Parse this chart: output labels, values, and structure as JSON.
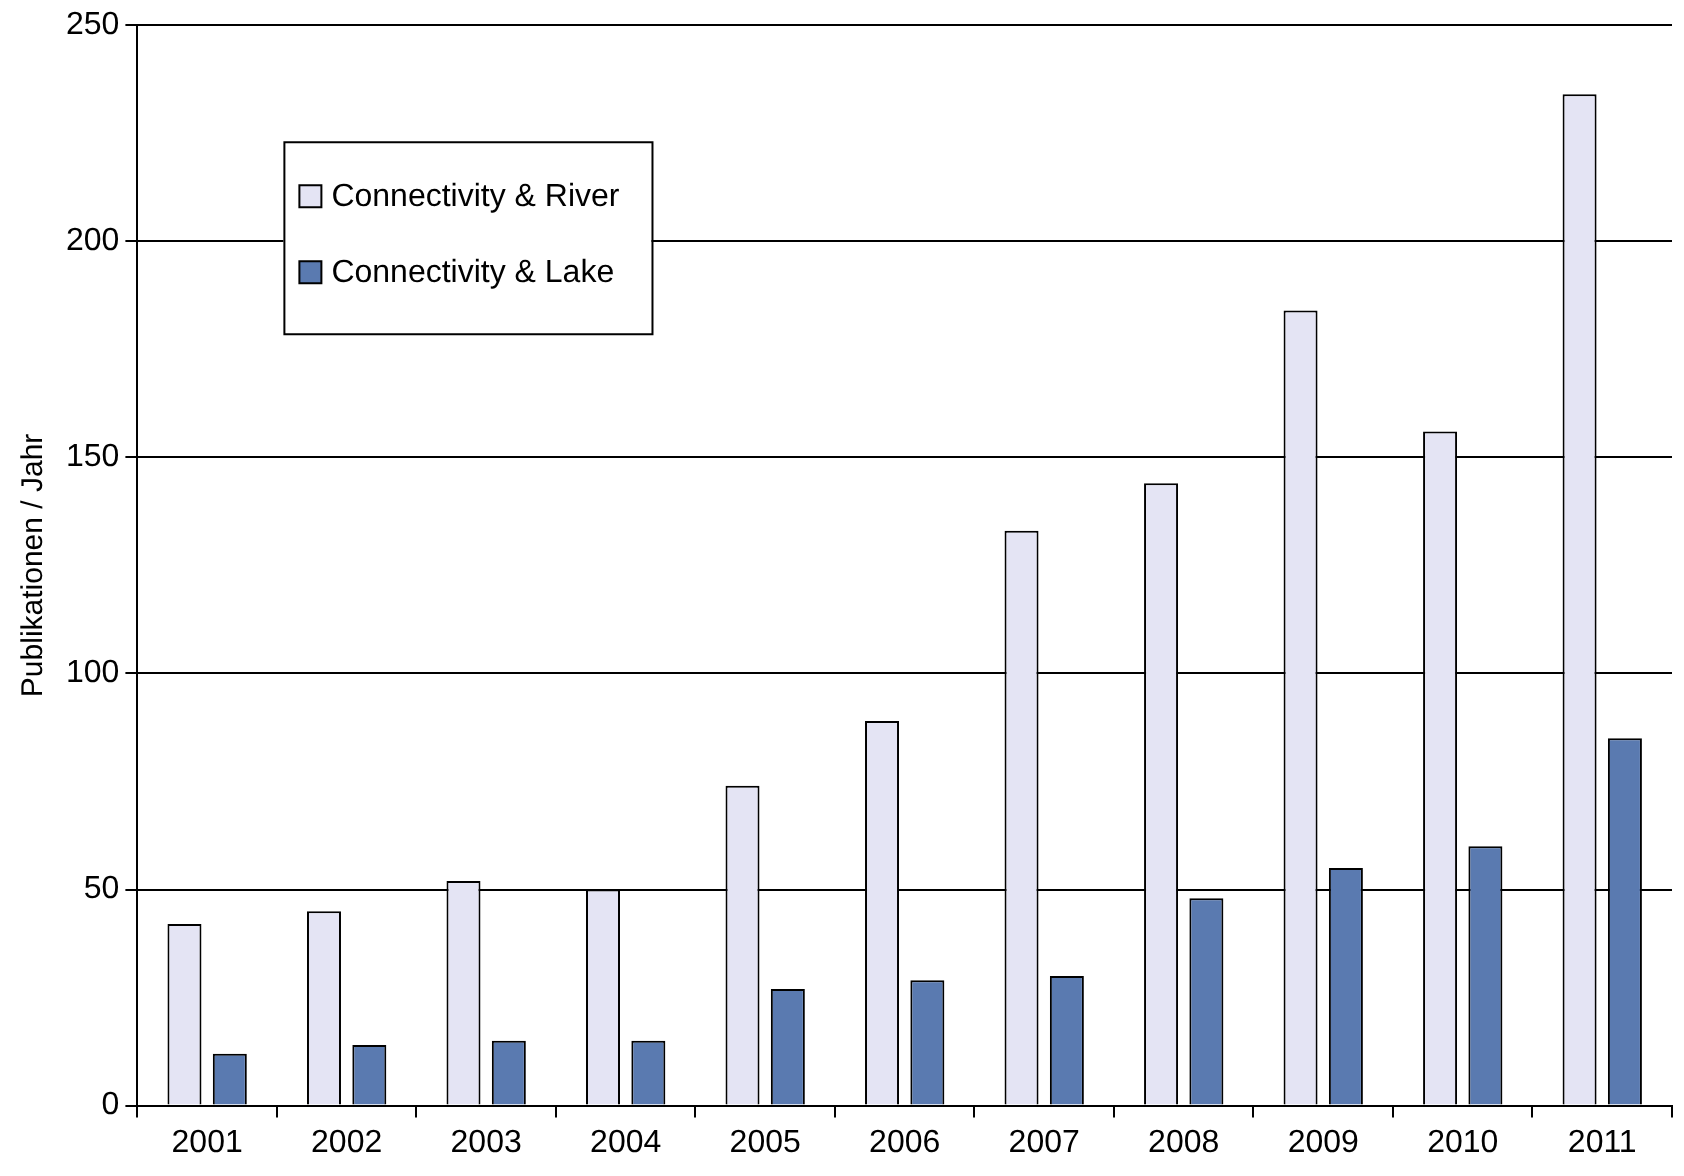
{
  "chart_data": {
    "type": "bar",
    "ylabel": "Publikationen / Jahr",
    "categories": [
      "2001",
      "2002",
      "2003",
      "2004",
      "2005",
      "2006",
      "2007",
      "2008",
      "2009",
      "2010",
      "2011"
    ],
    "series": [
      {
        "name": "Connectivity & River",
        "color": "#e4e4f4",
        "values": [
          42,
          45,
          52,
          50,
          74,
          89,
          133,
          144,
          184,
          156,
          234
        ]
      },
      {
        "name": "Connectivity & Lake",
        "color": "#5a7ab0",
        "values": [
          12,
          14,
          15,
          15,
          27,
          29,
          30,
          48,
          55,
          60,
          85
        ]
      }
    ],
    "ylim": [
      0,
      250
    ],
    "yticks": [
      0,
      50,
      100,
      150,
      200,
      250
    ],
    "grid": "y",
    "legend": "top left"
  }
}
